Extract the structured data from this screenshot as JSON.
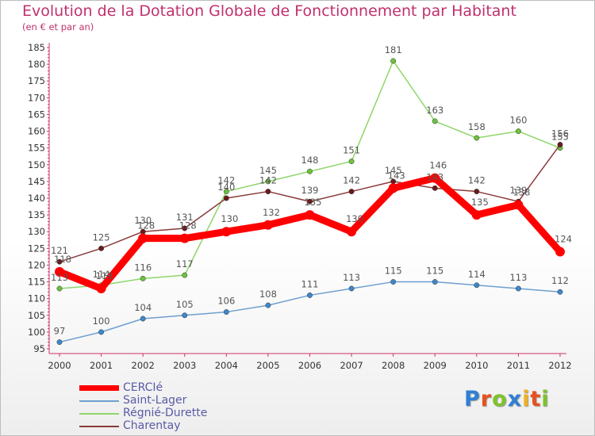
{
  "title": "Evolution de la Dotation Globale de Fonctionnement par Habitant",
  "subtitle": "(en € et par an)",
  "logo_text": "Proxiti",
  "logo_colors": [
    "#2f7fd4",
    "#e8501e",
    "#7cc32a",
    "#2f7fd4",
    "#f0b020",
    "#e8501e",
    "#7cc32a"
  ],
  "chart_data": {
    "type": "line",
    "x": [
      "2000",
      "2001",
      "2002",
      "2003",
      "2004",
      "2005",
      "2006",
      "2007",
      "2008",
      "2009",
      "2010",
      "2011",
      "2012"
    ],
    "ylim": [
      95,
      185
    ],
    "yticks": [
      95,
      100,
      105,
      110,
      115,
      120,
      125,
      130,
      135,
      140,
      145,
      150,
      155,
      160,
      165,
      170,
      175,
      180,
      185
    ],
    "grid": false,
    "legend_position": "bottom-left",
    "series": [
      {
        "name": "Saint-Lager",
        "color": "#6e9fcf",
        "marker": "#3f88c8",
        "values": [
          97,
          100,
          104,
          105,
          106,
          108,
          111,
          113,
          115,
          115,
          114,
          113,
          112
        ]
      },
      {
        "name": "Régnié-Durette",
        "color": "#8ed66a",
        "marker": "#6cc23c",
        "values": [
          113,
          114,
          116,
          117,
          142,
          145,
          148,
          151,
          181,
          163,
          158,
          160,
          155
        ]
      },
      {
        "name": "Charentay",
        "color": "#8a3a3a",
        "marker": "#6b1a1a",
        "values": [
          121,
          125,
          130,
          131,
          140,
          142,
          139,
          142,
          145,
          143,
          142,
          139,
          156
        ]
      },
      {
        "name": "CERCIé",
        "color": "#ff0000",
        "marker": "#ff0000",
        "values": [
          118,
          113,
          128,
          128,
          130,
          132,
          135,
          130,
          143,
          146,
          135,
          138,
          124
        ]
      }
    ]
  }
}
